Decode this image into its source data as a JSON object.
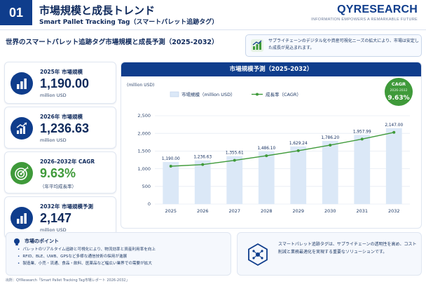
{
  "header": {
    "number": "01",
    "title": "市場規模と成長トレンド",
    "subtitle": "Smart Pallet Tracking Tag（スマートパレット追跡タグ）",
    "brand": "QYRESEARCH",
    "brand_tagline": "INFORMATION EMPOWERS A REMARKABLE FUTURE"
  },
  "section_title": "世界のスマートパレット追跡タグ市場規模と成長予測（2025-2032）",
  "note": {
    "icon": "growth-chart-icon",
    "text": "サプライチェーンのデジタル化や資産可視化ニーズの拡大により、市場は安定した成長が見込まれます。"
  },
  "kpis": [
    {
      "label": "2025年 市場規模",
      "value": "1,190.00",
      "unit": "million USD",
      "icon": "bar-chart-icon"
    },
    {
      "label": "2026年 市場規模",
      "value": "1,236.63",
      "unit": "million USD",
      "icon": "trend-up-icon"
    },
    {
      "label": "2026-2032年 CAGR",
      "value": "9.63%",
      "unit": "（年平均成長率）",
      "icon": "target-icon"
    },
    {
      "label": "2032年 市場規模予測",
      "value": "2,147",
      "unit": "million USD",
      "icon": "bar-chart-icon"
    }
  ],
  "chart_title": "市場規模予測（2025-2032）",
  "cagr_badge": {
    "title": "CAGR",
    "period": "2026-2032",
    "value": "9.63%"
  },
  "colors": {
    "navy": "#0f3d8c",
    "green": "#3f9a3a",
    "bar": "#dbe8f7",
    "grid": "#e6ecf4"
  },
  "chart_data": {
    "type": "bar",
    "unit_label": "(million USD)",
    "categories": [
      "2025",
      "2026",
      "2027",
      "2028",
      "2029",
      "2030",
      "2031",
      "2032"
    ],
    "series": [
      {
        "name": "市場規模（million USD）",
        "type": "bar",
        "values": [
          1190.0,
          1236.63,
          1355.61,
          1486.1,
          1629.24,
          1786.2,
          1957.99,
          2147.0
        ]
      },
      {
        "name": "成長率（CAGR）",
        "type": "line",
        "values": [
          1190.0,
          1236.63,
          1355.61,
          1486.1,
          1629.24,
          1786.2,
          1957.99,
          2147.0
        ]
      }
    ],
    "data_labels": [
      "1,190.00",
      "1,236.63",
      "1,355.61",
      "1,486.10",
      "1,629.24",
      "1,786.20",
      "1,957.99",
      "2,147.00"
    ],
    "yticks": [
      0,
      500,
      1000,
      1500,
      2000,
      2500
    ],
    "ytick_labels": [
      "0",
      "500",
      "1,000",
      "1,500",
      "2,000",
      "2,500"
    ],
    "ylim": [
      0,
      2500
    ],
    "grid": true,
    "legend_position": "top-left"
  },
  "bottom_left": {
    "title": "市場のポイント",
    "items": [
      "パレットのリアルタイム追跡と可視化により、物流効率と資産利用率を向上",
      "RFID、BLE、UWB、GPSなど多様な通信技術の採用が進展",
      "製造業、小売・流通、食品・飲料、医薬品など幅広い業界での需要が拡大"
    ]
  },
  "bottom_right": {
    "icon": "hexagon-network-icon",
    "text": "スマートパレット追跡タグは、サプライチェーンの透明性を高め、コスト削減と業務最適化を実現する重要なソリューションです。"
  },
  "source": "出所：QYResearch「Smart Pallet Tracking Tag市場レポート 2026-2032」"
}
